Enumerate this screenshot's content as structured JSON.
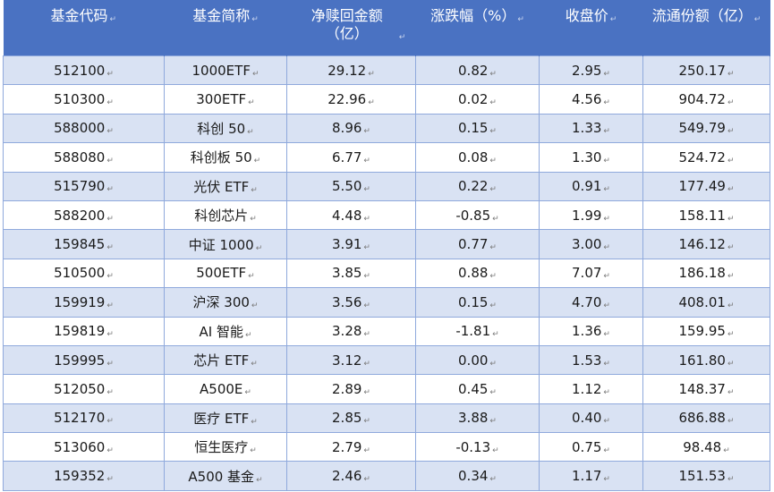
{
  "table": {
    "headers": [
      "基金代码",
      "基金简称",
      "净赎回金额（亿）",
      "涨跌幅（%）",
      "收盘价",
      "流通份额（亿）"
    ],
    "rows": [
      [
        "512100",
        "1000ETF",
        "29.12",
        "0.82",
        "2.95",
        "250.17"
      ],
      [
        "510300",
        "300ETF",
        "22.96",
        "0.02",
        "4.56",
        "904.72"
      ],
      [
        "588000",
        "科创 50",
        "8.96",
        "0.15",
        "1.33",
        "549.79"
      ],
      [
        "588080",
        "科创板 50",
        "6.77",
        "0.08",
        "1.30",
        "524.72"
      ],
      [
        "515790",
        "光伏 ETF",
        "5.50",
        "0.22",
        "0.91",
        "177.49"
      ],
      [
        "588200",
        "科创芯片",
        "4.48",
        "-0.85",
        "1.99",
        "158.11"
      ],
      [
        "159845",
        "中证 1000",
        "3.91",
        "0.77",
        "3.00",
        "146.12"
      ],
      [
        "510500",
        "500ETF",
        "3.85",
        "0.88",
        "7.07",
        "186.18"
      ],
      [
        "159919",
        "沪深 300",
        "3.56",
        "0.15",
        "4.70",
        "408.01"
      ],
      [
        "159819",
        "AI 智能",
        "3.28",
        "-1.81",
        "1.36",
        "159.95"
      ],
      [
        "159995",
        "芯片 ETF",
        "3.12",
        "0.00",
        "1.53",
        "161.80"
      ],
      [
        "512050",
        "A500E",
        "2.89",
        "0.45",
        "1.12",
        "148.37"
      ],
      [
        "512170",
        "医疗 ETF",
        "2.85",
        "3.88",
        "0.40",
        "686.88"
      ],
      [
        "513060",
        "恒生医疗",
        "2.79",
        "-0.13",
        "0.75",
        "98.48"
      ],
      [
        "159352",
        "A500 基金",
        "2.46",
        "0.34",
        "1.17",
        "151.53"
      ]
    ]
  },
  "paragraph_mark": "↵",
  "colors": {
    "header_bg": "#4a72c2",
    "band_row": "#d9e2f3",
    "plain_row": "#ffffff",
    "grid": "#8fa9dc"
  }
}
